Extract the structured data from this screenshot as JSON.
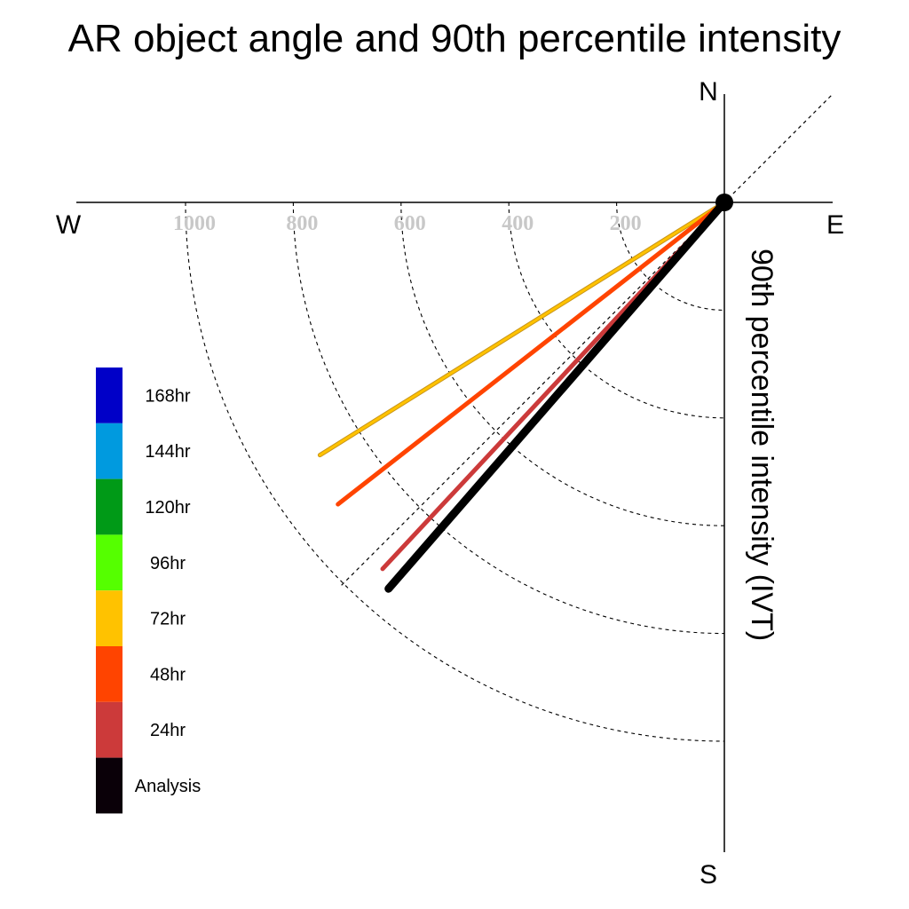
{
  "chart_data": {
    "type": "polar-line",
    "title": "AR object angle and 90th percentile intensity",
    "ylabel": "90th percentile intensity (IVT)",
    "compass": {
      "north": "N",
      "south": "S",
      "east": "E",
      "west": "W"
    },
    "radial_ticks": [
      200,
      400,
      600,
      800,
      1000
    ],
    "radial_tick_labels": [
      "200",
      "400",
      "600",
      "800",
      "1000"
    ],
    "guide_angle_deg": 45,
    "series": [
      {
        "name": "72hr",
        "color": "#ffc200",
        "angle_deg": -32,
        "value": 885
      },
      {
        "name": "48hr",
        "color": "#ff4400",
        "angle_deg": -38,
        "value": 910
      },
      {
        "name": "24hr",
        "color": "#cc3a3a",
        "angle_deg": -47,
        "value": 930
      },
      {
        "name": "Analysis",
        "color": "#000000",
        "angle_deg": -49,
        "value": 950
      }
    ],
    "legend": {
      "position": "left",
      "items": [
        {
          "label": "168hr",
          "color": "#0000c8"
        },
        {
          "label": "144hr",
          "color": "#009adf"
        },
        {
          "label": "120hr",
          "color": "#009a17"
        },
        {
          "label": "96hr",
          "color": "#55ff00"
        },
        {
          "label": "72hr",
          "color": "#ffc200"
        },
        {
          "label": "48hr",
          "color": "#ff4400"
        },
        {
          "label": "24hr",
          "color": "#cc3a3a"
        },
        {
          "label": "Analysis",
          "color": "#0a0008"
        }
      ]
    }
  }
}
